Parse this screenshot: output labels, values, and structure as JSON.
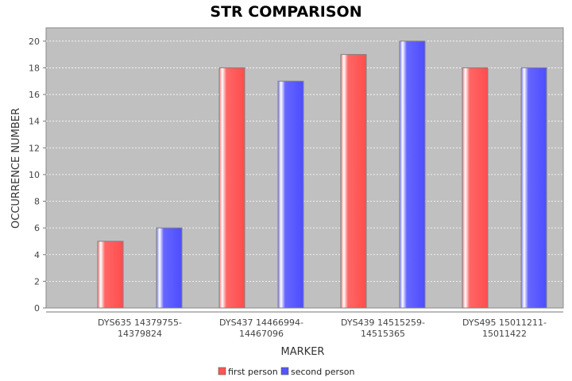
{
  "chart_data": {
    "type": "bar",
    "title": "STR COMPARISON",
    "xlabel": "MARKER",
    "ylabel": "OCCURRENCE NUMBER",
    "categories": [
      [
        "DYS635 14379755-",
        "14379824"
      ],
      [
        "DYS437 14466994-",
        "14467096"
      ],
      [
        "DYS439 14515259-",
        "14515365"
      ],
      [
        "DYS495 15011211-",
        "15011422"
      ]
    ],
    "series": [
      {
        "name": "first person",
        "color": "#ff5555",
        "values": [
          5,
          18,
          19,
          18
        ]
      },
      {
        "name": "second person",
        "color": "#5555ff",
        "values": [
          6,
          17,
          20,
          18
        ]
      }
    ],
    "ylim": [
      0,
      21
    ],
    "yticks": [
      0,
      2,
      4,
      6,
      8,
      10,
      12,
      14,
      16,
      18,
      20
    ],
    "grid": true,
    "legend_position": "bottom-center",
    "plot_background": "#c0c0c0"
  }
}
